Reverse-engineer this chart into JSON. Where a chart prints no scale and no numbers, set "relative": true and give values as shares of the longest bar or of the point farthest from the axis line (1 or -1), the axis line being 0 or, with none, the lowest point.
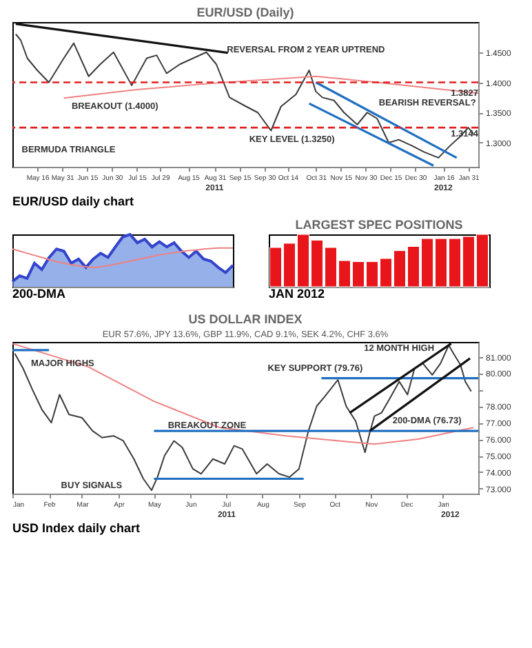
{
  "chart_data": [
    {
      "type": "line",
      "title": "EUR/USD (Daily)",
      "grid": false,
      "xlim": [
        "2011-05-01",
        "2012-02-06"
      ],
      "ylim": [
        1.26,
        1.5
      ],
      "xticks": [
        {
          "value": "2011-05-16",
          "label": "May 16"
        },
        {
          "value": "2011-05-31",
          "label": "May 31"
        },
        {
          "value": "2011-06-15",
          "label": "Jun 15"
        },
        {
          "value": "2011-06-30",
          "label": "Jun 30"
        },
        {
          "value": "2011-07-15",
          "label": "Jul 15"
        },
        {
          "value": "2011-07-29",
          "label": "Jul 29"
        },
        {
          "value": "2011-08-15",
          "label": "Aug 15"
        },
        {
          "value": "2011-08-31",
          "label": "Aug 31"
        },
        {
          "value": "2011-09-15",
          "label": "Sep 15"
        },
        {
          "value": "2011-09-30",
          "label": "Sep 30"
        },
        {
          "value": "2011-10-14",
          "label": "Oct 14"
        },
        {
          "value": "2011-10-31",
          "label": "Oct 31"
        },
        {
          "value": "2011-11-15",
          "label": "Nov 15"
        },
        {
          "value": "2011-11-30",
          "label": "Nov 30"
        },
        {
          "value": "2011-12-15",
          "label": "Dec 15"
        },
        {
          "value": "2011-12-30",
          "label": "Dec 30"
        },
        {
          "value": "2012-01-16",
          "label": "Jan 16"
        },
        {
          "value": "2012-01-31",
          "label": "Jan 31"
        }
      ],
      "yticks": [
        {
          "value": 1.3,
          "label": "1.3000"
        },
        {
          "value": 1.35,
          "label": "1.3500"
        },
        {
          "value": 1.4,
          "label": "1.4000"
        },
        {
          "value": 1.45,
          "label": "1.4500"
        }
      ],
      "series": [
        {
          "type": "line",
          "color": "#3a3a3a",
          "x": [
            "2011-05-03",
            "2011-05-06",
            "2011-05-10",
            "2011-05-16",
            "2011-05-23",
            "2011-06-01",
            "2011-06-07",
            "2011-06-16",
            "2011-06-23",
            "2011-07-01",
            "2011-07-12",
            "2011-07-21",
            "2011-07-27",
            "2011-08-02",
            "2011-08-10",
            "2011-08-26",
            "2011-09-01",
            "2011-09-09",
            "2011-09-19",
            "2011-09-26",
            "2011-10-04",
            "2011-10-10",
            "2011-10-19",
            "2011-10-27",
            "2011-10-31",
            "2011-11-04",
            "2011-11-11",
            "2011-11-17",
            "2011-11-25",
            "2011-12-01",
            "2011-12-07",
            "2011-12-14",
            "2011-12-20",
            "2011-12-28",
            "2012-01-04",
            "2012-01-13",
            "2012-01-20",
            "2012-01-26",
            "2012-01-31",
            "2012-02-03"
          ],
          "values": [
            1.48,
            1.47,
            1.44,
            1.42,
            1.4,
            1.44,
            1.465,
            1.41,
            1.43,
            1.45,
            1.395,
            1.44,
            1.445,
            1.415,
            1.43,
            1.45,
            1.43,
            1.375,
            1.36,
            1.35,
            1.32,
            1.36,
            1.38,
            1.42,
            1.385,
            1.375,
            1.37,
            1.35,
            1.33,
            1.35,
            1.34,
            1.3,
            1.305,
            1.295,
            1.285,
            1.275,
            1.295,
            1.31,
            1.325,
            1.315
          ]
        },
        {
          "type": "line",
          "color": "#f08080",
          "x": [
            "2011-06-01",
            "2011-07-15",
            "2011-09-01",
            "2011-10-31",
            "2011-12-07",
            "2012-02-06"
          ],
          "values": [
            1.374,
            1.388,
            1.399,
            1.41,
            1.4,
            1.382
          ]
        },
        {
          "type": "line",
          "color": "#111111",
          "x": [
            "2011-05-03",
            "2011-09-08"
          ],
          "values": [
            1.497,
            1.449
          ]
        },
        {
          "type": "line",
          "color": "#1f6fc0",
          "x": [
            "2011-10-31",
            "2012-01-24"
          ],
          "values": [
            1.4,
            1.275
          ]
        },
        {
          "type": "line",
          "color": "#1f6fc0",
          "x": [
            "2011-10-27",
            "2012-01-10"
          ],
          "values": [
            1.365,
            1.262
          ]
        }
      ],
      "ref_lines": [
        {
          "axis": "y",
          "value": 1.4,
          "color": "#e02020",
          "line_style": "dashed"
        },
        {
          "axis": "y",
          "value": 1.325,
          "color": "#e02020",
          "line_style": "dashed"
        }
      ],
      "annotations": [
        "BERMUDA TRIANGLE",
        "BREAKOUT (1.4000)",
        "REVERSAL FROM 2 YEAR UPTREND",
        "BEARISH REVERSAL?",
        "KEY LEVEL (1.3250)",
        {
          "text": "1.3827",
          "x": "2012-02-06",
          "y": 1.3827
        },
        {
          "text": "1.3144",
          "x": "2012-02-06",
          "y": 1.3144
        },
        "2011",
        "2012",
        "EUR/USD daily chart"
      ]
    },
    {
      "type": "area",
      "relative": true,
      "grid": false,
      "categories": [
        null,
        null,
        null,
        null,
        null,
        null,
        null,
        null,
        null,
        null,
        null,
        null,
        null,
        null,
        null,
        null,
        null,
        null,
        null,
        null,
        null,
        null,
        null,
        null,
        null,
        null,
        null,
        null,
        null,
        null,
        null
      ],
      "series": [
        {
          "type": "area",
          "color": "#6a8fe0",
          "values": [
            0.1,
            0.21,
            0.16,
            0.45,
            0.33,
            0.56,
            0.72,
            0.68,
            0.45,
            0.53,
            0.37,
            0.53,
            0.64,
            0.56,
            0.76,
            0.95,
            1.0,
            0.84,
            0.91,
            0.76,
            0.86,
            0.76,
            0.84,
            0.68,
            0.56,
            0.68,
            0.53,
            0.49,
            0.37,
            0.27,
            0.41
          ]
        },
        {
          "type": "line",
          "color": "#f08080",
          "values": [
            0.72,
            0.68,
            0.64,
            0.6,
            0.56,
            0.52,
            0.48,
            0.45,
            0.42,
            0.4,
            0.38,
            0.37,
            0.38,
            0.4,
            0.43,
            0.46,
            0.49,
            0.52,
            0.55,
            0.58,
            0.61,
            0.63,
            0.65,
            0.67,
            0.69,
            0.7,
            0.72,
            0.73,
            0.74,
            0.74,
            0.74
          ]
        }
      ],
      "annotations": [
        "200-DMA"
      ]
    },
    {
      "type": "line",
      "title": "US DOLLAR INDEX",
      "subtitle": "EUR 57.6%, JPY 13.6%, GBP 11.9%, CAD 9.1%, SEK 4.2%, CHF 3.6%",
      "grid": false,
      "xlim": [
        "2011-01-01",
        "2012-01-31"
      ],
      "ylim": [
        72.7,
        81.9
      ],
      "xticks": [
        {
          "value": "2011-01-01",
          "label": "Jan"
        },
        {
          "value": "2011-02-01",
          "label": "Feb"
        },
        {
          "value": "2011-03-01",
          "label": "Mar"
        },
        {
          "value": "2011-04-01",
          "label": "Apr"
        },
        {
          "value": "2011-05-01",
          "label": "May"
        },
        {
          "value": "2011-06-01",
          "label": "Jun"
        },
        {
          "value": "2011-07-01",
          "label": "Jul"
        },
        {
          "value": "2011-08-01",
          "label": "Aug"
        },
        {
          "value": "2011-09-01",
          "label": "Sep"
        },
        {
          "value": "2011-10-01",
          "label": "Oct"
        },
        {
          "value": "2011-11-01",
          "label": "Nov"
        },
        {
          "value": "2011-12-01",
          "label": "Dec"
        },
        {
          "value": "2012-01-01",
          "label": "Jan"
        }
      ],
      "yticks": [
        {
          "value": 73,
          "label": "73.000"
        },
        {
          "value": 74,
          "label": "74.000"
        },
        {
          "value": 75,
          "label": "75.000"
        },
        {
          "value": 76,
          "label": "76.000"
        },
        {
          "value": 77,
          "label": "77.000"
        },
        {
          "value": 78,
          "label": "78.000"
        },
        {
          "value": 79,
          "label": null
        },
        {
          "value": 80,
          "label": "80.000"
        },
        {
          "value": 81,
          "label": "81.000"
        }
      ],
      "series": [
        {
          "type": "line",
          "color": "#3a3a3a",
          "x": [
            "2011-01-03",
            "2011-01-10",
            "2011-01-18",
            "2011-01-26",
            "2011-02-03",
            "2011-02-10",
            "2011-02-18",
            "2011-03-01",
            "2011-03-10",
            "2011-03-18",
            "2011-03-28",
            "2011-04-05",
            "2011-04-14",
            "2011-04-22",
            "2011-04-29",
            "2011-05-04",
            "2011-05-10",
            "2011-05-18",
            "2011-05-25",
            "2011-06-03",
            "2011-06-10",
            "2011-06-20",
            "2011-06-30",
            "2011-07-08",
            "2011-07-15",
            "2011-07-27",
            "2011-08-05",
            "2011-08-15",
            "2011-08-24",
            "2011-09-01",
            "2011-09-09",
            "2011-09-16",
            "2011-09-23",
            "2011-10-04",
            "2011-10-11",
            "2011-10-19",
            "2011-10-27",
            "2011-10-31",
            "2011-11-04",
            "2011-11-10",
            "2011-11-18",
            "2011-11-25",
            "2011-12-02",
            "2011-12-08",
            "2011-12-15",
            "2011-12-23",
            "2011-12-30",
            "2012-01-06",
            "2012-01-10",
            "2012-01-16",
            "2012-01-20",
            "2012-01-25"
          ],
          "values": [
            81.2,
            80.3,
            79.0,
            77.8,
            77.0,
            78.7,
            77.5,
            77.3,
            76.5,
            76.1,
            76.2,
            75.9,
            74.8,
            73.6,
            72.9,
            73.7,
            75.0,
            75.9,
            75.5,
            74.2,
            73.9,
            74.8,
            74.5,
            75.6,
            75.4,
            73.9,
            74.5,
            73.9,
            73.7,
            74.2,
            76.5,
            78.0,
            78.6,
            79.6,
            78.0,
            77.1,
            75.2,
            76.4,
            77.4,
            77.6,
            78.6,
            79.5,
            78.7,
            80.3,
            80.6,
            79.9,
            80.6,
            81.7,
            81.2,
            80.5,
            79.5,
            78.9
          ]
        },
        {
          "type": "line",
          "color": "#f08080",
          "x": [
            "2011-01-01",
            "2011-03-06",
            "2011-05-01",
            "2011-06-26",
            "2011-08-21",
            "2011-11-04",
            "2011-12-11",
            "2012-01-27"
          ],
          "values": [
            81.8,
            80.4,
            78.3,
            76.7,
            76.2,
            75.7,
            76.0,
            76.7
          ]
        },
        {
          "type": "line",
          "color": "#1f6fc0",
          "x": [
            "2011-01-01",
            "2011-02-01"
          ],
          "values": [
            81.4,
            81.4
          ]
        },
        {
          "type": "line",
          "color": "#1f6fc0",
          "x": [
            "2011-09-20",
            "2012-01-31"
          ],
          "values": [
            79.7,
            79.7
          ]
        },
        {
          "type": "line",
          "color": "#1f6fc0",
          "x": [
            "2011-05-01",
            "2012-01-31"
          ],
          "values": [
            76.5,
            76.5
          ]
        },
        {
          "type": "line",
          "color": "#1f6fc0",
          "x": [
            "2011-05-01",
            "2011-09-05"
          ],
          "values": [
            73.6,
            73.6
          ]
        },
        {
          "type": "line",
          "color": "#111111",
          "x": [
            "2011-10-14",
            "2012-01-08"
          ],
          "values": [
            77.6,
            81.8
          ]
        },
        {
          "type": "line",
          "color": "#111111",
          "x": [
            "2011-10-31",
            "2012-01-24"
          ],
          "values": [
            76.5,
            80.9
          ]
        }
      ],
      "annotations": [
        "MAJOR HIGHS",
        "KEY SUPPORT (79.76)",
        {
          "text": "BREAKOUT ZONE",
          "x": "2011-06-15",
          "y": 76.85
        },
        "200-DMA (76.73)",
        "12 MONTH HIGH",
        "BUY SIGNALS",
        "2011",
        "2012",
        "USD Index daily chart"
      ]
    },
    {
      "type": "bar",
      "relative": true,
      "grid": false,
      "title": "LARGEST SPEC POSITIONS",
      "categories": [
        null,
        null,
        null,
        null,
        null,
        null,
        null,
        null,
        null,
        null,
        null,
        null,
        null,
        null,
        null,
        null
      ],
      "values": [
        0.75,
        0.83,
        1.0,
        0.89,
        0.75,
        0.5,
        0.48,
        0.48,
        0.54,
        0.69,
        0.77,
        0.92,
        0.92,
        0.92,
        0.96,
        1.0
      ],
      "color": "#e8161b",
      "annotations": [
        "JAN 2012"
      ]
    }
  ]
}
